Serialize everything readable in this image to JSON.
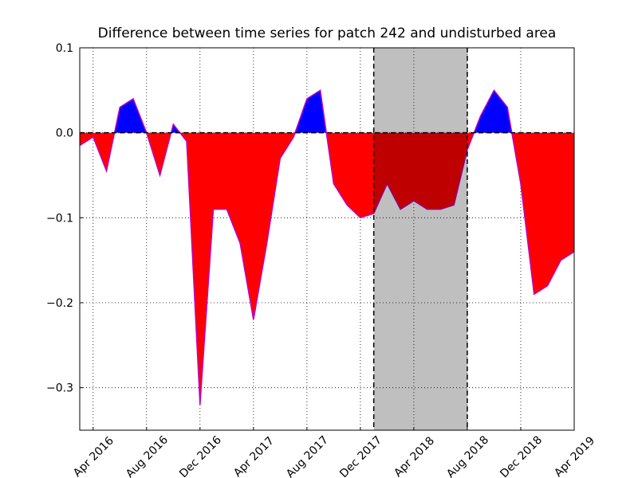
{
  "chart_data": {
    "type": "area",
    "title": "Difference between time series for patch 242 and undisturbed area",
    "x": [
      "2016-03",
      "2016-04",
      "2016-05",
      "2016-06",
      "2016-07",
      "2016-08",
      "2016-09",
      "2016-10",
      "2016-11",
      "2016-12",
      "2017-01",
      "2017-02",
      "2017-03",
      "2017-04",
      "2017-05",
      "2017-06",
      "2017-07",
      "2017-08",
      "2017-09",
      "2017-10",
      "2017-11",
      "2017-12",
      "2018-01",
      "2018-02",
      "2018-03",
      "2018-04",
      "2018-05",
      "2018-06",
      "2018-07",
      "2018-08",
      "2018-09",
      "2018-10",
      "2018-11",
      "2018-12",
      "2019-01",
      "2019-02",
      "2019-03",
      "2019-04"
    ],
    "series": [
      {
        "values": [
          -0.015,
          -0.005,
          -0.045,
          0.03,
          0.04,
          0.0,
          -0.05,
          0.01,
          -0.01,
          -0.32,
          -0.09,
          -0.09,
          -0.13,
          -0.22,
          -0.13,
          -0.03,
          -0.005,
          0.04,
          0.05,
          -0.06,
          -0.085,
          -0.1,
          -0.095,
          -0.06,
          -0.09,
          -0.08,
          -0.09,
          -0.09,
          -0.085,
          -0.02,
          0.02,
          0.05,
          0.03,
          -0.06,
          -0.19,
          -0.18,
          -0.15,
          -0.14
        ],
        "color": "#bf00bf",
        "positive_color": "#0000ff",
        "negative_color": "#ff0000"
      }
    ],
    "span": {
      "start": "2018-01",
      "end": "2018-08",
      "color": "#bfbfbf"
    },
    "xlim": [
      "2016-03",
      "2019-04"
    ],
    "xticks": [
      {
        "value": "2016-04",
        "label": "Apr 2016"
      },
      {
        "value": "2016-08",
        "label": "Aug 2016"
      },
      {
        "value": "2016-12",
        "label": "Dec 2016"
      },
      {
        "value": "2017-04",
        "label": "Apr 2017"
      },
      {
        "value": "2017-08",
        "label": "Aug 2017"
      },
      {
        "value": "2017-12",
        "label": "Dec 2017"
      },
      {
        "value": "2018-04",
        "label": "Apr 2018"
      },
      {
        "value": "2018-08",
        "label": "Aug 2018"
      },
      {
        "value": "2018-12",
        "label": "Dec 2018"
      },
      {
        "value": "2019-04",
        "label": "Apr 2019"
      }
    ],
    "ylim": [
      -0.35,
      0.1
    ],
    "yticks": [
      {
        "value": -0.3,
        "label": "−0.3"
      },
      {
        "value": -0.2,
        "label": "−0.2"
      },
      {
        "value": -0.1,
        "label": "−0.1"
      },
      {
        "value": 0,
        "label": "0.0"
      },
      {
        "value": 0.1,
        "label": "0.1"
      }
    ],
    "grid": true
  }
}
